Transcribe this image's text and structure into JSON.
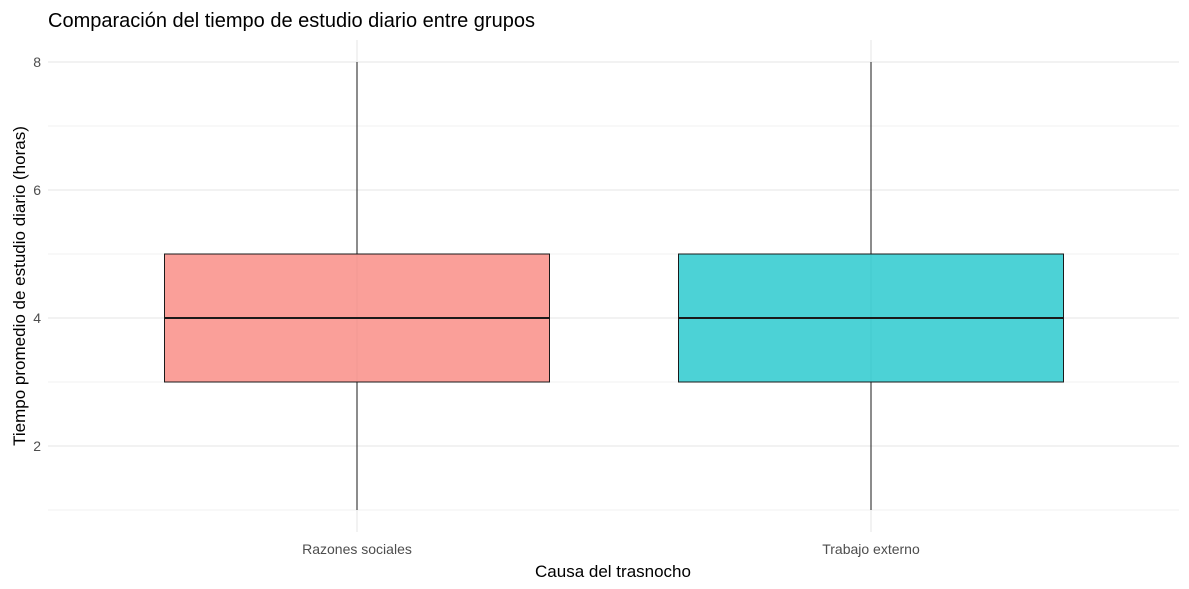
{
  "chart_data": {
    "type": "boxplot",
    "title": "Comparación del tiempo de estudio diario entre grupos",
    "xlabel": "Causa del trasnocho",
    "ylabel": "Tiempo promedio de estudio diario (horas)",
    "ylim": [
      1,
      8
    ],
    "yticks": [
      2,
      4,
      6,
      8
    ],
    "grid": true,
    "legend": "none",
    "categories": [
      "Razones sociales",
      "Trabajo externo"
    ],
    "boxes": [
      {
        "category": "Razones sociales",
        "min": 1,
        "q1": 3,
        "median": 4,
        "q3": 5,
        "max": 8,
        "color": "#f8766d"
      },
      {
        "category": "Trabajo externo",
        "min": 1,
        "q1": 3,
        "median": 4,
        "q3": 5,
        "max": 8,
        "color": "#00bfc4"
      }
    ]
  }
}
